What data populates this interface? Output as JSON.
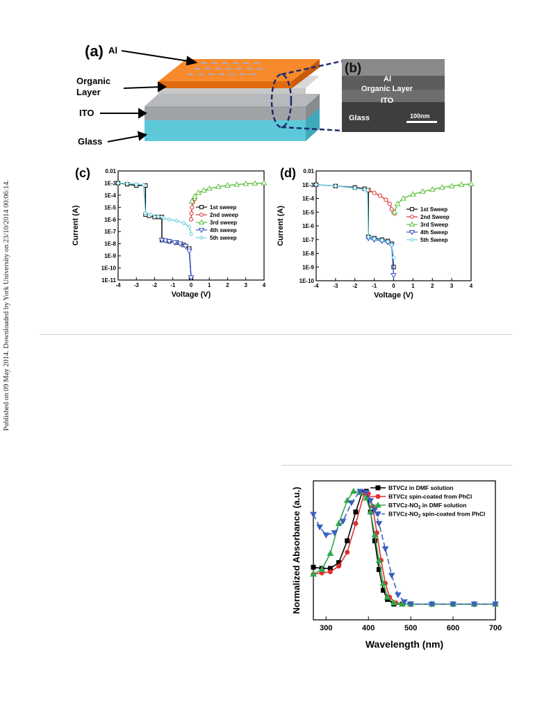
{
  "side_note": "Published on 09 May 2014. Downloaded by York University on 23/10/2014 00:06:14.",
  "figure_top": {
    "panel_a": {
      "letter": "(a)",
      "labels": [
        "Al",
        "Organic",
        "Layer",
        "ITO",
        "Glass"
      ]
    },
    "panel_b": {
      "letter": "(b)",
      "labels": [
        "Al",
        "Organic Layer",
        "ITO",
        "Glass"
      ],
      "scalebar": "100nm"
    },
    "colors": {
      "al": "#f47c20",
      "organic": "#c8c8c8",
      "ito": "#9fa3a6",
      "glass": "#5cc8d8"
    }
  },
  "chart_data": [
    {
      "panel": "(c)",
      "type": "line",
      "xlabel": "Voltage (V)",
      "ylabel": "Current (A)",
      "xlim": [
        -4,
        4
      ],
      "ylim_log10": [
        -11,
        -2
      ],
      "x_ticks": [
        "-4",
        "-3",
        "-2",
        "-1",
        "0",
        "1",
        "2",
        "3",
        "4"
      ],
      "y_ticks": [
        "0.01",
        "1E-3",
        "1E-4",
        "1E-5",
        "1E-6",
        "1E-7",
        "1E-8",
        "1E-9",
        "1E-10",
        "1E-11"
      ],
      "legend_position": "right",
      "series": [
        {
          "name": "1st sweep",
          "color": "#000000",
          "marker": "square-open",
          "x": [
            -4,
            -3.5,
            -3,
            -2.5,
            -2.5,
            -2.3,
            -2,
            -1.8,
            -1.6,
            -1.6,
            -1.2,
            -0.8,
            -0.4,
            -0.1,
            0
          ],
          "y": [
            -3,
            -3.1,
            -3.2,
            -3.2,
            -5.6,
            -5.7,
            -5.8,
            -5.8,
            -5.8,
            -7.7,
            -7.8,
            -7.9,
            -8.1,
            -8.4,
            -10.8
          ]
        },
        {
          "name": "2nd sweep",
          "color": "#e03030",
          "marker": "circle-open",
          "x": [
            0,
            0.02,
            0.05,
            0.1,
            0.2
          ],
          "y": [
            -6,
            -5.5,
            -5,
            -4.6,
            -4.3
          ]
        },
        {
          "name": "3rd sweep",
          "color": "#5bbf3a",
          "marker": "triangle-open",
          "x": [
            0.05,
            0.2,
            0.4,
            0.7,
            1,
            1.5,
            2,
            2.5,
            3,
            3.5,
            4
          ],
          "y": [
            -4.5,
            -4.1,
            -3.8,
            -3.6,
            -3.45,
            -3.3,
            -3.2,
            -3.12,
            -3.06,
            -3.02,
            -3
          ]
        },
        {
          "name": "4th sweep",
          "color": "#3a4fc4",
          "marker": "triangle-down-open",
          "x": [
            -1.6,
            -1.4,
            -1.2,
            -0.9,
            -0.6,
            -0.3,
            -0.1,
            0
          ],
          "y": [
            -7.7,
            -7.75,
            -7.8,
            -7.9,
            -8,
            -8.2,
            -8.6,
            -10.8
          ]
        },
        {
          "name": "5th sweep",
          "color": "#6fd0e0",
          "marker": "diamond-open",
          "x": [
            -4,
            -3.5,
            -3,
            -2.6,
            -2.5,
            -2.2,
            -1.8,
            -1.5,
            -1.2,
            -0.8,
            -0.4,
            -0.1,
            0
          ],
          "y": [
            -3,
            -3.05,
            -3.1,
            -3.15,
            -5.5,
            -5.6,
            -5.75,
            -5.9,
            -6,
            -6.1,
            -6.3,
            -6.6,
            -7.2
          ]
        }
      ]
    },
    {
      "panel": "(d)",
      "type": "line",
      "xlabel": "Voltage (V)",
      "ylabel": "Current (A)",
      "xlim": [
        -4,
        4
      ],
      "ylim_log10": [
        -10,
        -2
      ],
      "x_ticks": [
        "-4",
        "-3",
        "-2",
        "-1",
        "0",
        "1",
        "2",
        "3",
        "4"
      ],
      "y_ticks": [
        "0.01",
        "1E-3",
        "1E-4",
        "1E-5",
        "1E-6",
        "1E-7",
        "1E-8",
        "1E-9",
        "1E-10"
      ],
      "legend_position": "right",
      "series": [
        {
          "name": "1st Sweep",
          "color": "#000000",
          "marker": "square-open",
          "x": [
            -4,
            -3,
            -2,
            -1.5,
            -1.3,
            -1.3,
            -1,
            -0.6,
            -0.3,
            -0.1,
            0
          ],
          "y": [
            -3,
            -3.1,
            -3.2,
            -3.3,
            -3.4,
            -6.8,
            -6.9,
            -7,
            -7.1,
            -7.3,
            -9
          ]
        },
        {
          "name": "2nd Sweep",
          "color": "#e03030",
          "marker": "circle-open",
          "x": [
            -1.3,
            -1,
            -0.7,
            -0.4,
            -0.2,
            -0.1,
            0,
            0.05
          ],
          "y": [
            -3.4,
            -3.6,
            -3.8,
            -4.1,
            -4.4,
            -4.8,
            -5,
            -5.1
          ]
        },
        {
          "name": "3rd Sweep",
          "color": "#5bbf3a",
          "marker": "triangle-open",
          "x": [
            0.05,
            0.2,
            0.5,
            1,
            1.5,
            2,
            2.5,
            3,
            3.5,
            4
          ],
          "y": [
            -5,
            -4.4,
            -4,
            -3.7,
            -3.5,
            -3.35,
            -3.2,
            -3.1,
            -3.0,
            -2.95
          ]
        },
        {
          "name": "4th Sweep",
          "color": "#3a4fc4",
          "marker": "triangle-down-open",
          "x": [
            -1.3,
            -1,
            -0.6,
            -0.3,
            -0.1,
            0
          ],
          "y": [
            -6.9,
            -7,
            -7.1,
            -7.2,
            -7.4,
            -9.6
          ]
        },
        {
          "name": "5th Sweep",
          "color": "#6fd0e0",
          "marker": "diamond-open",
          "x": [
            -4,
            -3,
            -2,
            -1.5,
            -1.35,
            -1.3,
            -1,
            -0.6,
            -0.3,
            -0.1,
            0
          ],
          "y": [
            -3,
            -3.1,
            -3.25,
            -3.35,
            -3.4,
            -6.8,
            -6.95,
            -7.05,
            -7.15,
            -7.4,
            -8.3
          ]
        }
      ]
    },
    {
      "panel": "absorbance",
      "type": "line",
      "xlabel": "Wavelength (nm)",
      "ylabel": "Normalized Absorbance (a.u.)",
      "xlim": [
        270,
        700
      ],
      "ylim": [
        0,
        1.0
      ],
      "x_ticks": [
        "300",
        "400",
        "500",
        "600",
        "700"
      ],
      "legend_position": "top-right",
      "series": [
        {
          "name": "BTVCz in DMF solution",
          "color": "#000000",
          "marker": "square",
          "x": [
            270,
            290,
            310,
            330,
            350,
            370,
            385,
            395,
            405,
            415,
            425,
            435,
            445,
            460,
            480,
            500,
            550,
            600,
            650,
            700
          ],
          "y": [
            0.32,
            0.31,
            0.31,
            0.36,
            0.55,
            0.8,
            0.97,
            0.98,
            0.8,
            0.55,
            0.3,
            0.12,
            0.04,
            0.0,
            0,
            0,
            0,
            0,
            0,
            0
          ]
        },
        {
          "name": "BTVCz spin-coated from PhCl",
          "color": "#e03030",
          "marker": "circle",
          "x": [
            270,
            290,
            310,
            330,
            350,
            370,
            390,
            400,
            410,
            420,
            430,
            440,
            450,
            465,
            480,
            500,
            550,
            600,
            650,
            700
          ],
          "y": [
            0.26,
            0.27,
            0.28,
            0.33,
            0.45,
            0.7,
            0.96,
            0.96,
            0.85,
            0.62,
            0.38,
            0.18,
            0.06,
            0.01,
            0,
            0,
            0,
            0,
            0,
            0
          ]
        },
        {
          "name": "BTVCz-NO",
          "name_sub": "2",
          "name_rest": " in DMF solution",
          "color": "#2fa84a",
          "marker": "triangle",
          "x": [
            270,
            290,
            310,
            330,
            350,
            365,
            380,
            395,
            405,
            415,
            425,
            435,
            445,
            460,
            480,
            500,
            550,
            600,
            650,
            700
          ],
          "y": [
            0.26,
            0.3,
            0.44,
            0.7,
            0.9,
            0.98,
            0.97,
            0.92,
            0.8,
            0.6,
            0.38,
            0.18,
            0.06,
            0.01,
            0,
            0,
            0,
            0,
            0,
            0
          ]
        },
        {
          "name": "BTVCz-NO",
          "name_sub": "2",
          "name_rest": " spin-coated from PhCl",
          "color": "#3a5fc0",
          "marker": "triangle-down",
          "dashed": true,
          "x": [
            270,
            285,
            300,
            320,
            340,
            360,
            380,
            395,
            405,
            415,
            425,
            440,
            455,
            470,
            485,
            500,
            550,
            600,
            650,
            700
          ],
          "y": [
            0.78,
            0.67,
            0.6,
            0.62,
            0.72,
            0.88,
            0.98,
            0.97,
            0.9,
            0.82,
            0.7,
            0.48,
            0.25,
            0.08,
            0.02,
            0,
            0,
            0,
            0,
            0
          ]
        }
      ]
    }
  ]
}
